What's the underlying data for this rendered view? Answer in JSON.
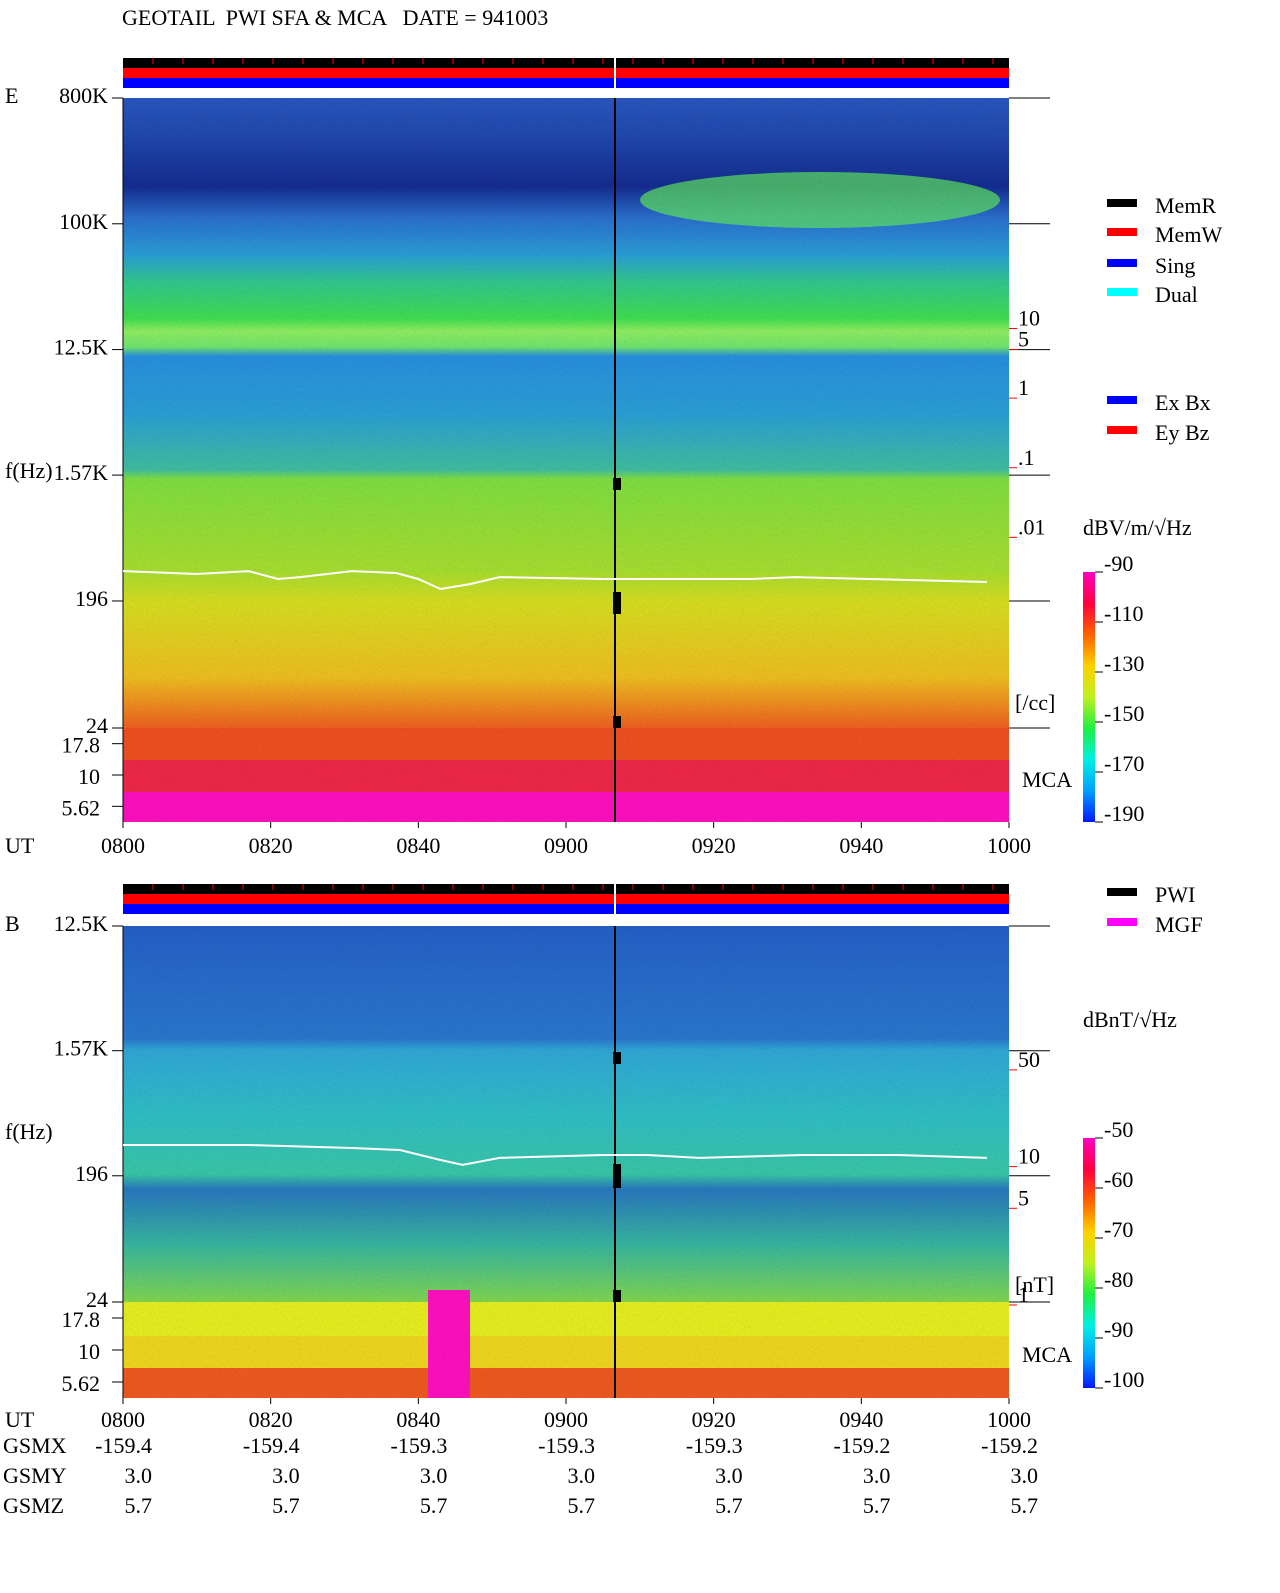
{
  "title": "GEOTAIL  PWI SFA & MCA   DATE = 941003",
  "chart_data": [
    {
      "type": "spectrogram",
      "panel_label": "E",
      "y_label": "f(Hz)",
      "x_label": "UT",
      "xlim": [
        0,
        120
      ],
      "xticks": [
        {
          "value": 0,
          "label": "0800"
        },
        {
          "value": 20,
          "label": "0820"
        },
        {
          "value": 40,
          "label": "0840"
        },
        {
          "value": 60,
          "label": "0900"
        },
        {
          "value": 80,
          "label": "0920"
        },
        {
          "value": 100,
          "label": "0940"
        },
        {
          "value": 120,
          "label": "1000"
        }
      ],
      "yscale": "log",
      "ylim": [
        24,
        800000
      ],
      "yticks": [
        {
          "value": 800000,
          "label": "800K"
        },
        {
          "value": 100000,
          "label": "100K"
        },
        {
          "value": 12500,
          "label": "12.5K"
        },
        {
          "value": 1570,
          "label": "1.57K"
        },
        196,
        24
      ],
      "mca_label": "MCA",
      "mca_ticks": [
        17.8,
        10,
        5.62
      ],
      "y2scale": "log",
      "y2lim": [
        1.4e-05,
        15700
      ],
      "y2_color": "#ff0000",
      "y2_label": "[/cc]",
      "y2ticks": [
        10,
        5,
        1,
        {
          "value": 0.1,
          "label": ".1"
        },
        {
          "value": 0.01,
          "label": ".01"
        }
      ],
      "colorbar": {
        "label": "dBV/m/√Hz",
        "clim": [
          -190,
          -90
        ],
        "ticks": [
          -90,
          -110,
          -130,
          -150,
          -170,
          -190
        ],
        "colormap": [
          "#0018ff",
          "#00a0ff",
          "#00f0e0",
          "#20f040",
          "#c0f020",
          "#ffd000",
          "#ff6000",
          "#ff0040",
          "#ff00c0"
        ]
      },
      "legend": [
        {
          "name": "MemR",
          "color": "#000000"
        },
        {
          "name": "MemW",
          "color": "#ff0000"
        },
        {
          "name": "Sing",
          "color": "#0000ff"
        },
        {
          "name": "Dual",
          "color": "#00ffff"
        }
      ],
      "legend2": [
        {
          "name": "Ex Bx",
          "color": "#0000ff"
        },
        {
          "name": "Ey Bz",
          "color": "#ff0000"
        }
      ],
      "trace": {
        "color": "#ffffff",
        "x": [
          0,
          10,
          17,
          21,
          24,
          31,
          37,
          40,
          43,
          47,
          51,
          65,
          78,
          85,
          91,
          101,
          117
        ],
        "values": [
          321,
          306,
          321,
          282,
          291,
          321,
          311,
          282,
          239,
          259,
          291,
          282,
          282,
          282,
          291,
          282,
          268
        ]
      }
    },
    {
      "type": "spectrogram",
      "panel_label": "B",
      "y_label": "f(Hz)",
      "x_label": "UT",
      "xlim": [
        0,
        120
      ],
      "xticks": [
        {
          "value": 0,
          "label": "0800"
        },
        {
          "value": 20,
          "label": "0820"
        },
        {
          "value": 40,
          "label": "0840"
        },
        {
          "value": 60,
          "label": "0900"
        },
        {
          "value": 80,
          "label": "0920"
        },
        {
          "value": 100,
          "label": "0940"
        },
        {
          "value": 120,
          "label": "1000"
        }
      ],
      "yscale": "log",
      "ylim": [
        24,
        12500
      ],
      "yticks": [
        {
          "value": 12500,
          "label": "12.5K"
        },
        {
          "value": 1570,
          "label": "1.57K"
        },
        196,
        24
      ],
      "mca_label": "MCA",
      "mca_ticks": [
        17.8,
        10,
        5.62
      ],
      "y2scale": "log",
      "y2lim": [
        0.92,
        480
      ],
      "y2_color": "#ff0000",
      "y2_label": "[nT]",
      "y2ticks": [
        50,
        10,
        5,
        1
      ],
      "colorbar": {
        "label": "dBnT/√Hz",
        "clim": [
          -100,
          -50
        ],
        "ticks": [
          -50,
          -60,
          -70,
          -80,
          -90,
          -100
        ],
        "colormap": [
          "#0018ff",
          "#00a0ff",
          "#00f0e0",
          "#20f040",
          "#c0f020",
          "#ffd000",
          "#ff6000",
          "#ff0040",
          "#ff00c0"
        ]
      },
      "legend": [
        {
          "name": "PWI",
          "color": "#000000"
        },
        {
          "name": "MGF",
          "color": "#ff00ff"
        }
      ],
      "trace": {
        "color": "#ffffff",
        "x": [
          0,
          17,
          31,
          37.5,
          43,
          46,
          51,
          65,
          71,
          78,
          92,
          105,
          117
        ],
        "values": [
          327,
          327,
          311,
          301,
          255,
          235,
          264,
          277,
          277,
          264,
          277,
          277,
          264
        ]
      },
      "orbit": [
        {
          "name": "GSMX",
          "values": [
            -159.4,
            -159.4,
            -159.3,
            -159.3,
            -159.3,
            -159.2,
            -159.2
          ]
        },
        {
          "name": "GSMY",
          "values": [
            {
              "value": 3,
              "label": "3.0"
            },
            {
              "value": 3,
              "label": "3.0"
            },
            {
              "value": 3,
              "label": "3.0"
            },
            {
              "value": 3,
              "label": "3.0"
            },
            {
              "value": 3,
              "label": "3.0"
            },
            {
              "value": 3,
              "label": "3.0"
            },
            {
              "value": 3,
              "label": "3.0"
            }
          ]
        },
        {
          "name": "GSMZ",
          "values": [
            5.7,
            5.7,
            5.7,
            5.7,
            5.7,
            5.7,
            5.7
          ]
        }
      ]
    }
  ]
}
